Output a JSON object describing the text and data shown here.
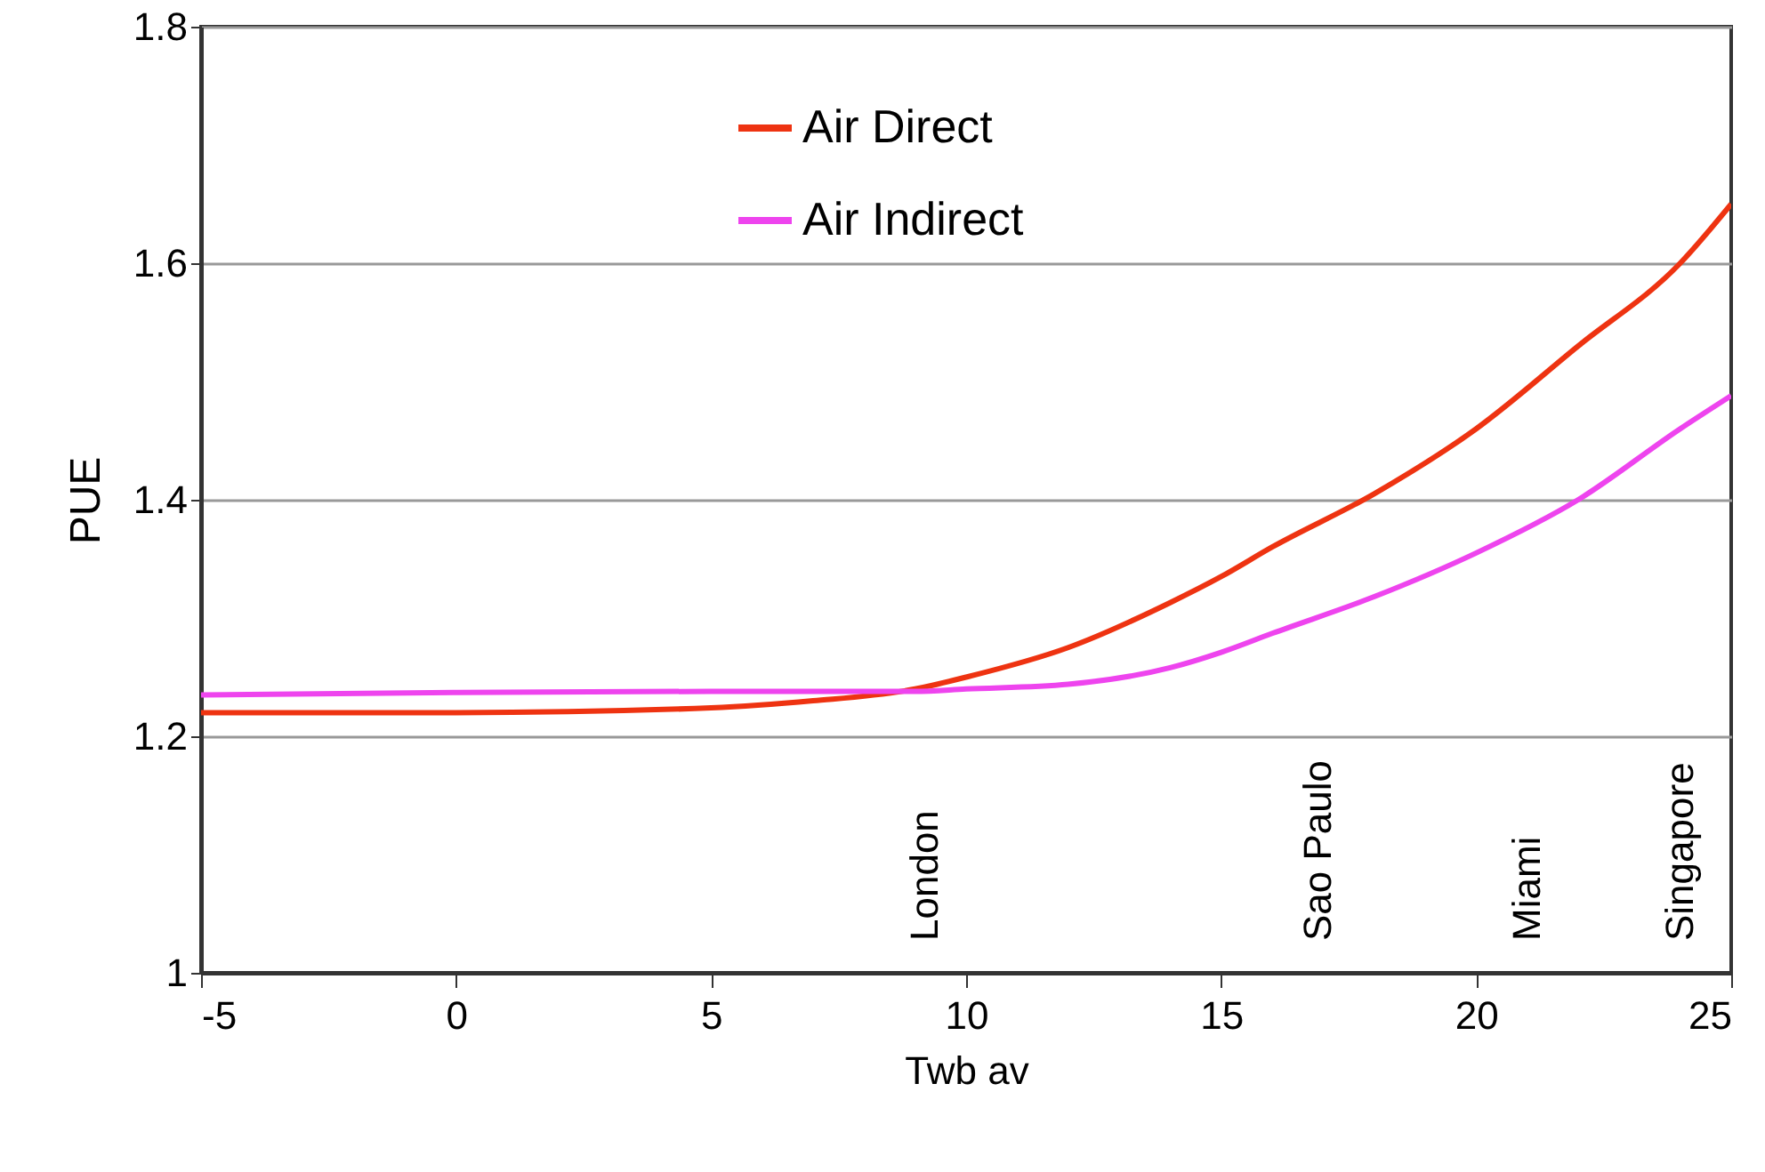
{
  "chart_data": {
    "type": "line",
    "xlabel": "Twb av",
    "ylabel": "PUE",
    "x": [
      -5,
      0,
      5,
      7,
      9,
      10,
      12,
      14,
      15,
      16,
      18,
      20,
      22,
      24,
      25
    ],
    "series": [
      {
        "name": "Air Direct",
        "color": "#ee3311",
        "values": [
          1.22,
          1.22,
          1.224,
          1.23,
          1.24,
          1.25,
          1.275,
          1.313,
          1.335,
          1.36,
          1.405,
          1.46,
          1.53,
          1.6,
          1.65
        ]
      },
      {
        "name": "Air Indirect",
        "color": "#ee44ee",
        "values": [
          1.235,
          1.237,
          1.238,
          1.238,
          1.238,
          1.24,
          1.244,
          1.258,
          1.271,
          1.287,
          1.318,
          1.355,
          1.4,
          1.46,
          1.488
        ]
      }
    ],
    "xlim": [
      -5,
      25
    ],
    "xticks": [
      -5,
      0,
      5,
      10,
      15,
      20,
      25
    ],
    "ylim": [
      1,
      1.8
    ],
    "yticks": [
      {
        "value": 1,
        "label": "1"
      },
      {
        "value": 1.2,
        "label": "1.2"
      },
      {
        "value": 1.4,
        "label": "1.4"
      },
      {
        "value": 1.6,
        "label": "1.6"
      },
      {
        "value": 1.8,
        "label": "1.8"
      }
    ],
    "grid": "y",
    "legend": "top",
    "marker": "none",
    "line_style": "solid",
    "annotations": [
      "London",
      "Sao Paulo",
      "Miami",
      "Singapore"
    ]
  }
}
